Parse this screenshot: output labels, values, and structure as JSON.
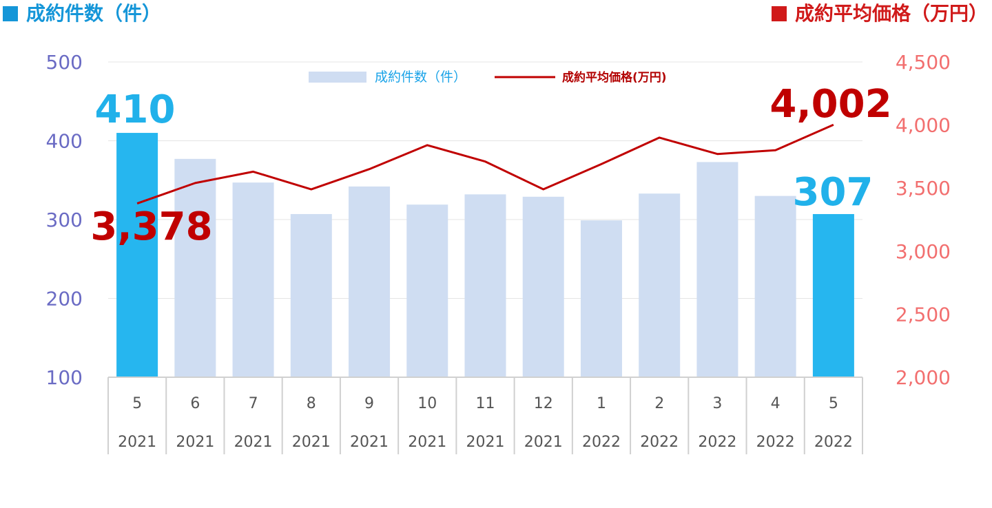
{
  "header": {
    "left_title": "成約件数（件）",
    "right_title": "成約平均価格（万円）"
  },
  "legend": {
    "bar_label": "成約件数（件）",
    "line_label": "成約平均価格(万円)"
  },
  "colors": {
    "bar_light": "#cfddf2",
    "bar_highlight": "#26b6ef",
    "line": "#c00000",
    "left_axis": "#6a6bc4",
    "right_axis": "#f26f6f"
  },
  "chart_data": {
    "type": "bar",
    "combo": "bar+line",
    "categories": [
      {
        "month": "5",
        "year": "2021"
      },
      {
        "month": "6",
        "year": "2021"
      },
      {
        "month": "7",
        "year": "2021"
      },
      {
        "month": "8",
        "year": "2021"
      },
      {
        "month": "9",
        "year": "2021"
      },
      {
        "month": "10",
        "year": "2021"
      },
      {
        "month": "11",
        "year": "2021"
      },
      {
        "month": "12",
        "year": "2021"
      },
      {
        "month": "1",
        "year": "2022"
      },
      {
        "month": "2",
        "year": "2022"
      },
      {
        "month": "3",
        "year": "2022"
      },
      {
        "month": "4",
        "year": "2022"
      },
      {
        "month": "5",
        "year": "2022"
      }
    ],
    "series": [
      {
        "name": "成約件数（件）",
        "type": "bar",
        "axis": "left",
        "values": [
          410,
          377,
          347,
          307,
          342,
          319,
          332,
          329,
          299,
          333,
          373,
          330,
          307
        ],
        "highlight_indices": [
          0,
          12
        ]
      },
      {
        "name": "成約平均価格(万円)",
        "type": "line",
        "axis": "right",
        "values": [
          3378,
          3540,
          3630,
          3490,
          3650,
          3840,
          3710,
          3490,
          3690,
          3900,
          3770,
          3800,
          4002
        ]
      }
    ],
    "left_axis": {
      "ylim": [
        100,
        500
      ],
      "ticks": [
        "100",
        "200",
        "300",
        "400",
        "500"
      ]
    },
    "right_axis": {
      "ylim": [
        2000,
        4500
      ],
      "ticks": [
        "2,000",
        "2,500",
        "3,000",
        "3,500",
        "4,000",
        "4,500"
      ]
    },
    "annotations": {
      "first_bar": "410",
      "last_bar": "307",
      "first_price": "3,378",
      "last_price": "4,002"
    },
    "grid": "horizontal",
    "legend_position": "top-center"
  }
}
